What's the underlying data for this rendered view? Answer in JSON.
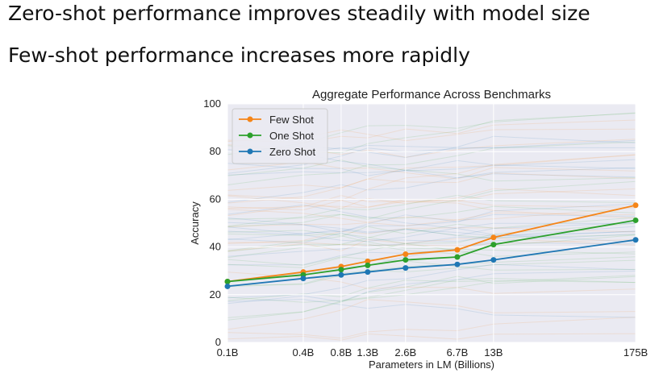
{
  "slide": {
    "bullets": [
      "Zero-shot performance improves steadily with model size",
      "Few-shot performance increases more rapidly"
    ]
  },
  "chart_data": {
    "type": "line",
    "title": "Aggregate Performance Across Benchmarks",
    "xlabel": "Parameters in LM (Billions)",
    "ylabel": "Accuracy",
    "categories": [
      "0.1B",
      "0.4B",
      "0.8B",
      "1.3B",
      "2.6B",
      "6.7B",
      "13B",
      "175B"
    ],
    "x": [
      0.1,
      0.4,
      0.8,
      1.3,
      2.6,
      6.7,
      13,
      175
    ],
    "ylim": [
      0,
      100
    ],
    "yticks": [
      0,
      20,
      40,
      60,
      80,
      100
    ],
    "grid": true,
    "legend_position": "top-left",
    "series": [
      {
        "name": "Few Shot",
        "color": "#f58518",
        "values": [
          25.5,
          29.5,
          31.8,
          34,
          37,
          38.8,
          44,
          57.5
        ]
      },
      {
        "name": "One Shot",
        "color": "#2ca02c",
        "values": [
          25.5,
          28.3,
          30.5,
          32.3,
          34.6,
          35.8,
          41,
          51.2
        ]
      },
      {
        "name": "Zero Shot",
        "color": "#1f77b4",
        "values": [
          23.5,
          26.8,
          28.3,
          29.5,
          31.2,
          32.7,
          34.6,
          43
        ]
      }
    ]
  }
}
